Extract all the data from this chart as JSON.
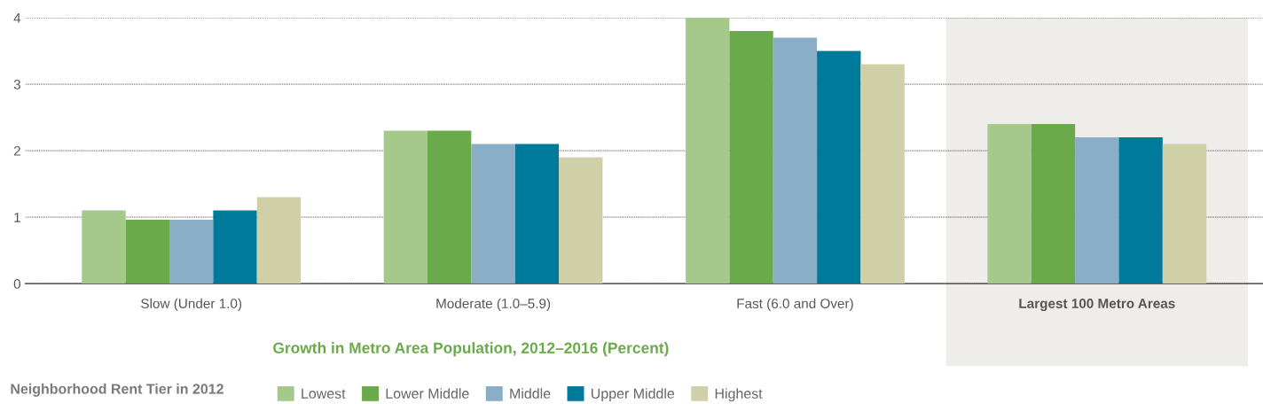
{
  "chart_data": {
    "type": "bar",
    "xlabel": "Growth in Metro Area Population, 2012–2016 (Percent)",
    "legend_title": "Neighborhood Rent Tier in 2012",
    "categories": [
      "Slow (Under 1.0)",
      "Moderate (1.0–5.9)",
      "Fast (6.0 and Over)",
      "Largest 100 Metro Areas"
    ],
    "series": [
      {
        "name": "Lowest",
        "color": "#a4c98b",
        "values": [
          1.1,
          2.3,
          4.0,
          2.4
        ]
      },
      {
        "name": "Lower Middle",
        "color": "#6aaa4a",
        "values": [
          0.96,
          2.3,
          3.8,
          2.4
        ]
      },
      {
        "name": "Middle",
        "color": "#89aec6",
        "values": [
          0.96,
          2.1,
          3.7,
          2.2
        ]
      },
      {
        "name": "Upper Middle",
        "color": "#007a9a",
        "values": [
          1.1,
          2.1,
          3.5,
          2.2
        ]
      },
      {
        "name": "Highest",
        "color": "#cfcfa8",
        "values": [
          1.3,
          1.9,
          3.3,
          2.1
        ]
      }
    ],
    "bands": [
      {
        "axis": "x",
        "from": "Largest 100 Metro Areas",
        "to": "Largest 100 Metro Areas",
        "color": "#efede9"
      }
    ],
    "ylim": [
      0,
      4
    ],
    "yticks": [
      0,
      1,
      2,
      3,
      4
    ],
    "grid": "y",
    "legend": "bottom"
  }
}
